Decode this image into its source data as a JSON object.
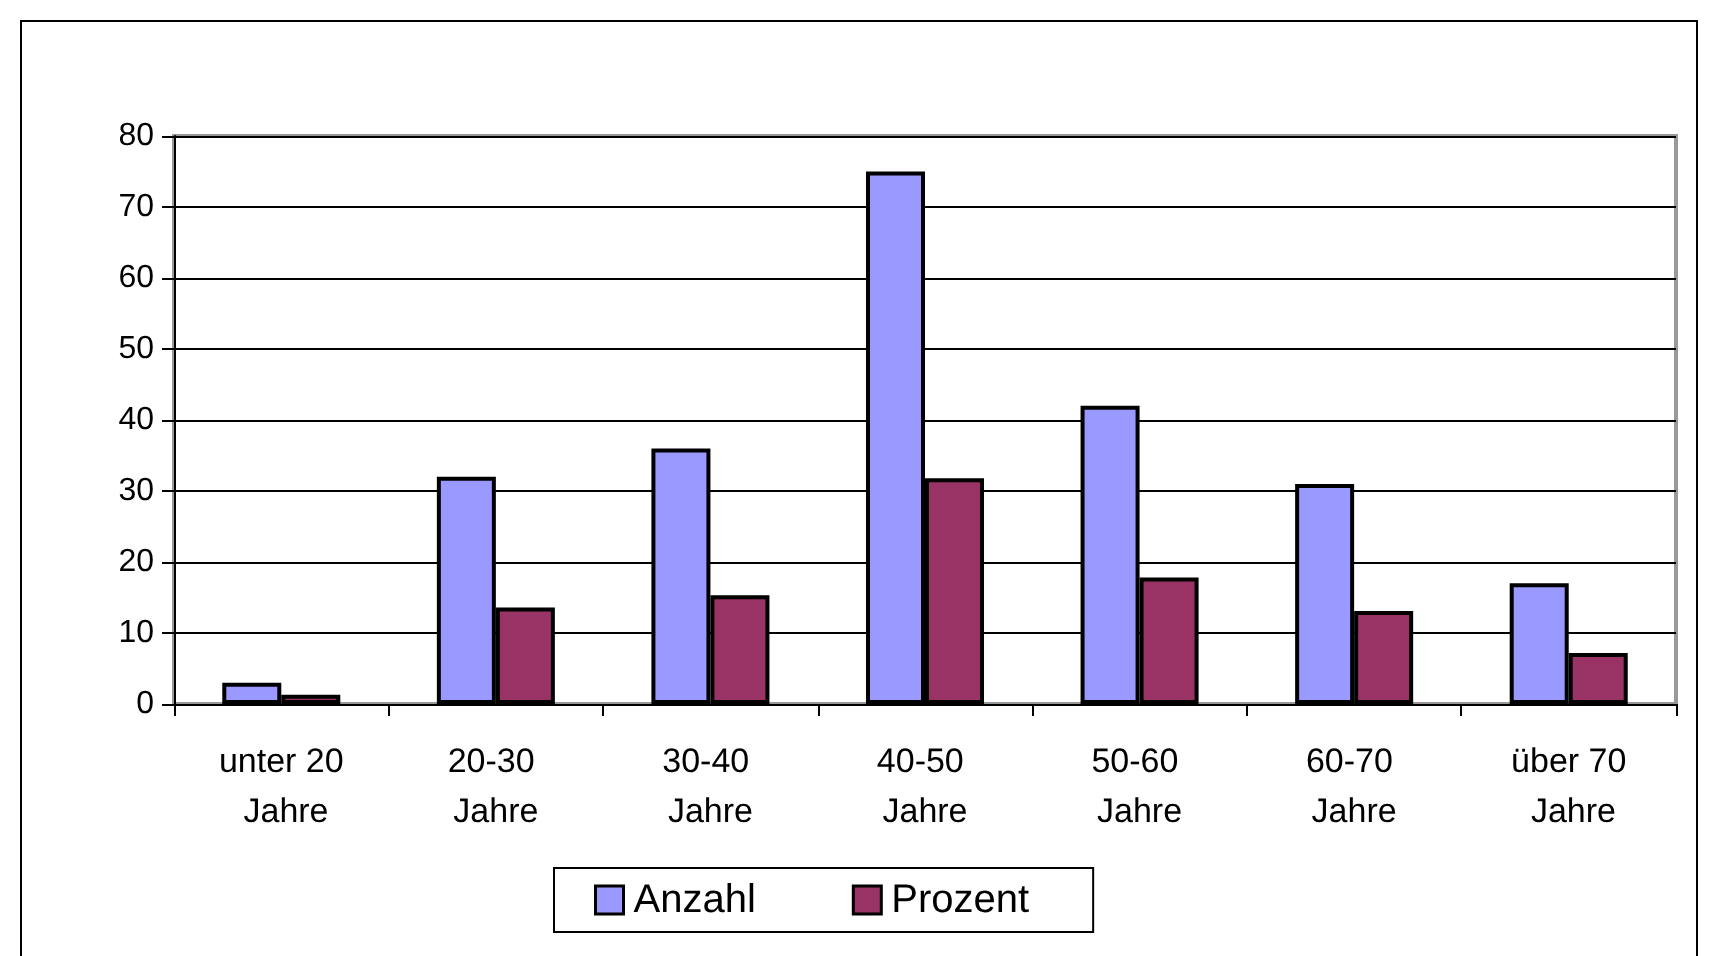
{
  "chart_data": {
    "type": "bar",
    "categories": [
      "unter 20 Jahre",
      "20-30 Jahre",
      "30-40 Jahre",
      "40-50 Jahre",
      "50-60 Jahre",
      "60-70 Jahre",
      "über 70 Jahre"
    ],
    "series": [
      {
        "name": "Anzahl",
        "color": "#9999ff",
        "values": [
          3,
          32,
          36,
          75,
          42,
          31,
          17
        ]
      },
      {
        "name": "Prozent",
        "color": "#993366",
        "values": [
          1.3,
          13.6,
          15.3,
          31.8,
          17.8,
          13.1,
          7.2
        ]
      }
    ],
    "ylim": [
      0,
      80
    ],
    "yticks": [
      0,
      10,
      20,
      30,
      40,
      50,
      60,
      70,
      80
    ],
    "grid": "y",
    "legend": "bottom"
  }
}
